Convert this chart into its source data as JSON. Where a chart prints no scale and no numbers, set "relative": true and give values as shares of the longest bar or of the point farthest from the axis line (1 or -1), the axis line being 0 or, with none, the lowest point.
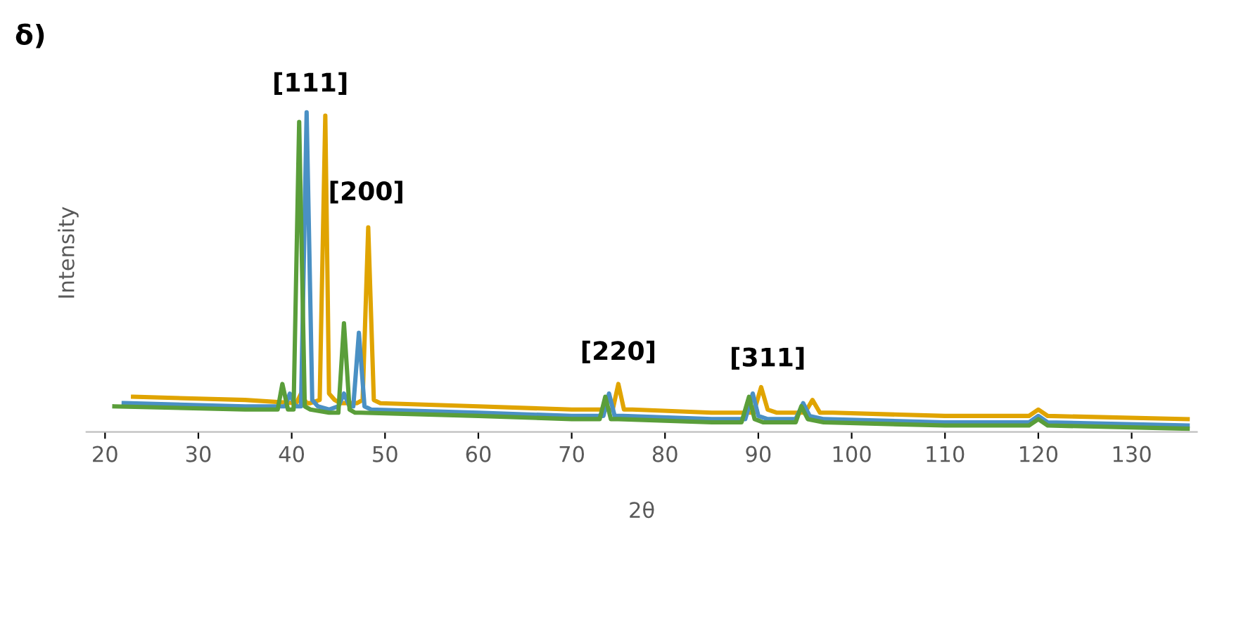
{
  "chart_data": {
    "type": "line",
    "title": "δ)",
    "xlabel": "2θ",
    "ylabel": "Intensity",
    "relative": true,
    "xlim": [
      18,
      137
    ],
    "xticks": [
      20,
      30,
      40,
      50,
      60,
      70,
      80,
      90,
      100,
      110,
      120,
      130
    ],
    "grid": false,
    "marker": "none",
    "line_style": "solid",
    "annotations": [
      {
        "text": "[111]",
        "x": 42,
        "y": 1.0
      },
      {
        "text": "[200]",
        "x": 48,
        "y": 0.66
      },
      {
        "text": "[220]",
        "x": 75,
        "y": 0.16
      },
      {
        "text": "[311]",
        "x": 91,
        "y": 0.14
      }
    ],
    "series": [
      {
        "color": "#e0a400",
        "x": [
          23,
          35,
          40.5,
          41,
          41.6,
          42,
          43,
          43.6,
          44,
          44.6,
          45.2,
          47,
          47.6,
          48.2,
          48.8,
          49.5,
          60,
          70,
          74.4,
          75,
          75.6,
          76.5,
          85,
          89.5,
          90.3,
          91,
          92,
          95,
          95.8,
          96.6,
          98,
          110,
          119,
          120,
          121,
          136
        ],
        "values": [
          0.11,
          0.1,
          0.09,
          0.12,
          0.09,
          0.09,
          0.1,
          0.99,
          0.12,
          0.1,
          0.09,
          0.09,
          0.1,
          0.64,
          0.1,
          0.09,
          0.08,
          0.07,
          0.07,
          0.15,
          0.07,
          0.07,
          0.06,
          0.06,
          0.14,
          0.07,
          0.06,
          0.06,
          0.1,
          0.06,
          0.06,
          0.05,
          0.05,
          0.07,
          0.05,
          0.04
        ]
      },
      {
        "color": "#4a90c4",
        "x": [
          22,
          35,
          39.3,
          39.8,
          40.4,
          41,
          41.6,
          42.2,
          42.8,
          44,
          45,
          45.6,
          46.2,
          46.6,
          47.2,
          47.8,
          48.5,
          60,
          70,
          73.4,
          74,
          74.6,
          75.5,
          85,
          88.6,
          89.4,
          90,
          91,
          94,
          94.8,
          95.5,
          97,
          110,
          119,
          120,
          121,
          136
        ],
        "values": [
          0.09,
          0.08,
          0.08,
          0.12,
          0.08,
          0.08,
          1.0,
          0.1,
          0.08,
          0.07,
          0.08,
          0.12,
          0.08,
          0.08,
          0.31,
          0.08,
          0.07,
          0.06,
          0.05,
          0.05,
          0.12,
          0.05,
          0.05,
          0.04,
          0.04,
          0.12,
          0.05,
          0.04,
          0.04,
          0.09,
          0.05,
          0.04,
          0.03,
          0.03,
          0.05,
          0.03,
          0.02
        ]
      },
      {
        "color": "#5a9e3a",
        "x": [
          21,
          35,
          38.5,
          39,
          39.6,
          40.2,
          40.8,
          41.4,
          42,
          44,
          45,
          45.6,
          46.2,
          46.8,
          47.4,
          60,
          70,
          73,
          73.6,
          74.2,
          75,
          85,
          88.2,
          89,
          89.6,
          90.5,
          94,
          94.6,
          95.3,
          97,
          110,
          119,
          120,
          121,
          136
        ],
        "values": [
          0.08,
          0.07,
          0.07,
          0.15,
          0.07,
          0.07,
          0.97,
          0.08,
          0.07,
          0.06,
          0.06,
          0.34,
          0.07,
          0.06,
          0.06,
          0.05,
          0.04,
          0.04,
          0.11,
          0.04,
          0.04,
          0.03,
          0.03,
          0.11,
          0.04,
          0.03,
          0.03,
          0.08,
          0.04,
          0.03,
          0.02,
          0.02,
          0.04,
          0.02,
          0.01
        ]
      }
    ]
  }
}
